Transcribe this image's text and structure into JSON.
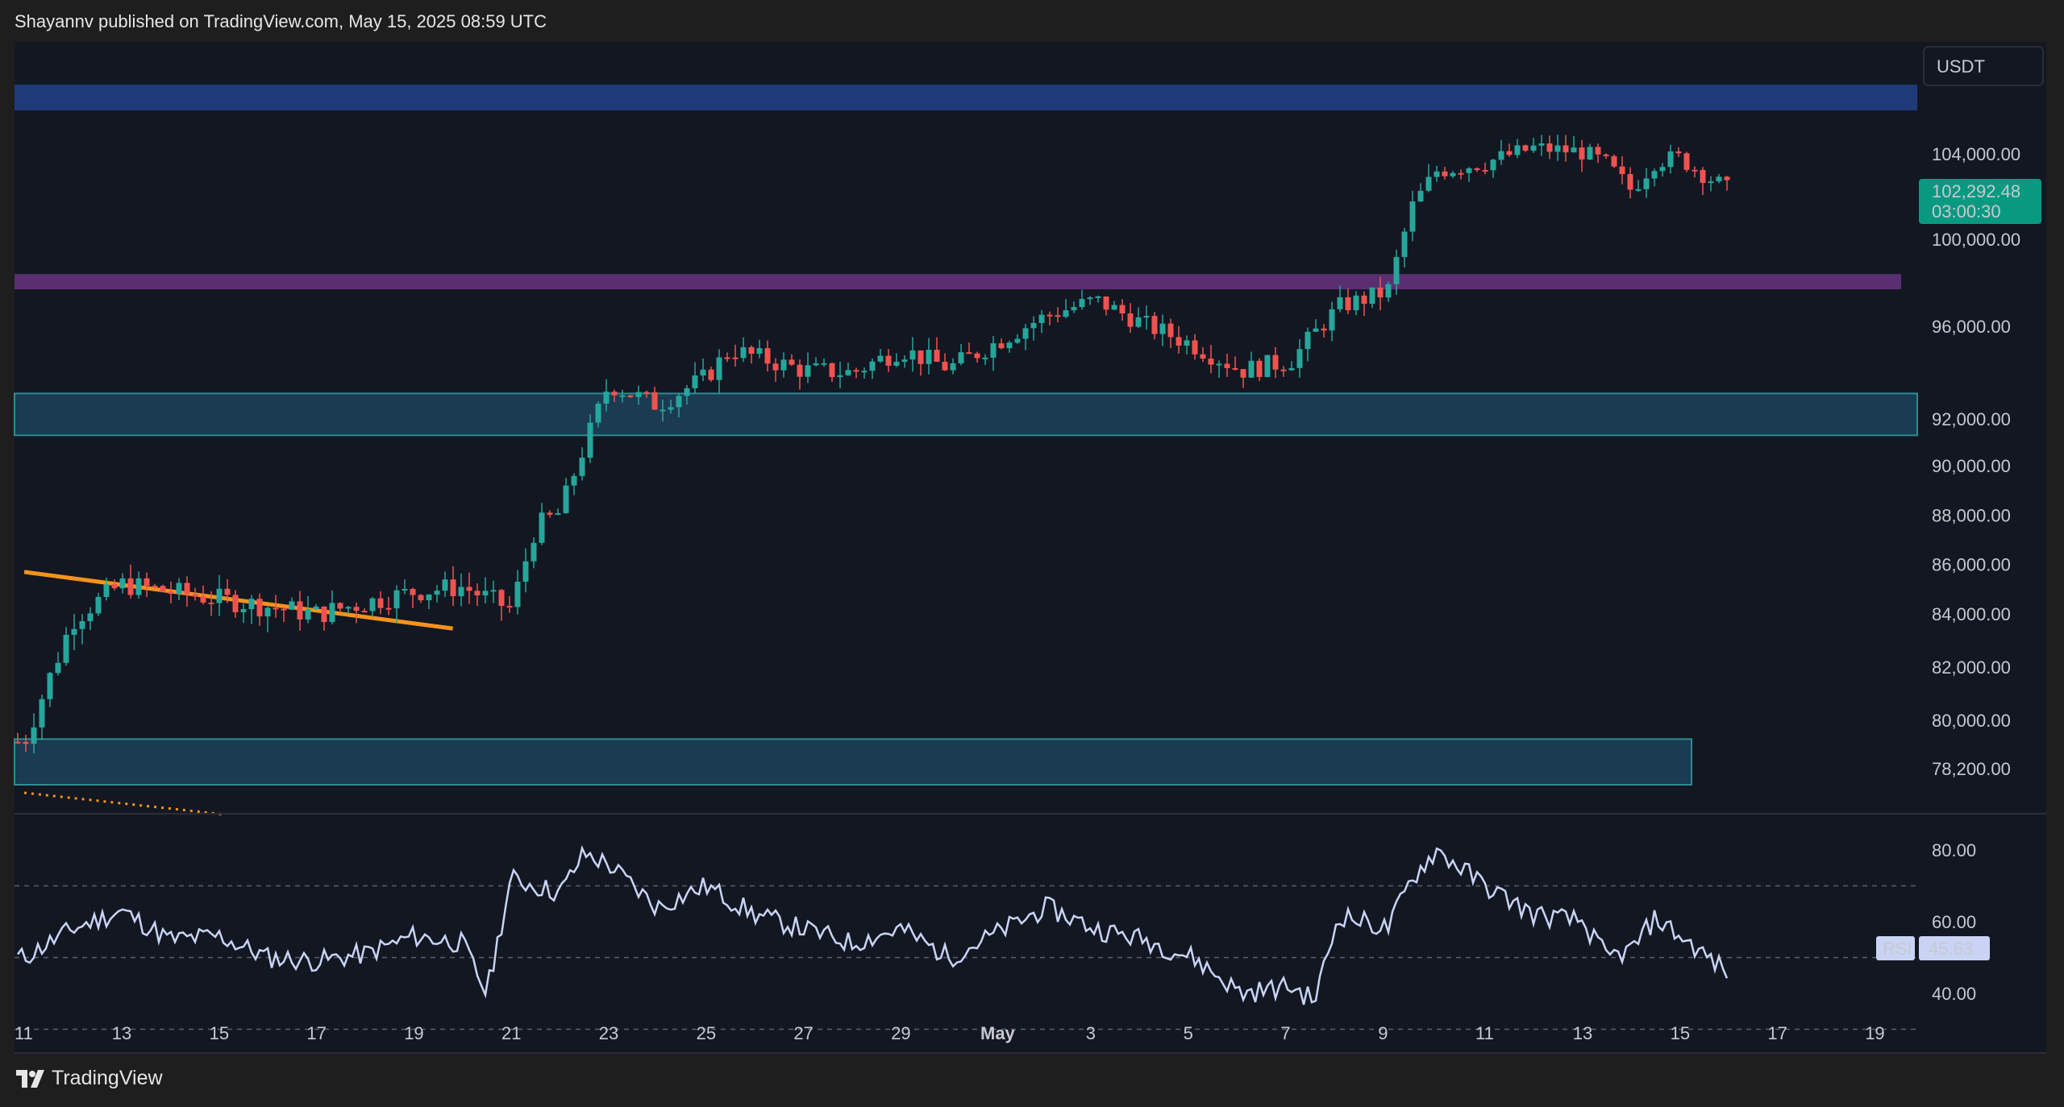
{
  "header": {
    "attribution": "Shayannv published on TradingView.com, May 15, 2025 08:59 UTC"
  },
  "footer": {
    "brand": "TradingView",
    "logo_icon": "tradingview-logo-icon"
  },
  "price_pane": {
    "currency": "USDT",
    "last_price_label": "102,292.48",
    "countdown": "03:00:30",
    "y_ticks": [
      "104,000.00",
      "100,000.00",
      "96,000.00",
      "92,000.00",
      "90,000.00",
      "88,000.00",
      "86,000.00",
      "84,000.00",
      "82,000.00",
      "80,000.00",
      "78,200.00"
    ]
  },
  "rsi_pane": {
    "label": "RSI",
    "value_label": "45.63",
    "y_ticks": [
      "80.00",
      "60.00",
      "40.00"
    ]
  },
  "x_axis": {
    "ticks": [
      "11",
      "13",
      "15",
      "17",
      "19",
      "21",
      "23",
      "25",
      "27",
      "29",
      "May",
      "3",
      "5",
      "7",
      "9",
      "11",
      "13",
      "15",
      "17",
      "19"
    ]
  },
  "colors": {
    "background": "#131722",
    "frame": "#1e1e1e",
    "up": "#26a69a",
    "down": "#ef5350",
    "resistance_zone": "#1e3a78",
    "breakout_zone": "#5a2f72",
    "support_zone": "#1a3b50",
    "trendline": "#f7931a",
    "rsi_line": "#c9d4f5"
  },
  "chart_data": [
    {
      "type": "candlestick",
      "title": "",
      "quote_currency": "USDT",
      "x_start": "Apr 11, 2025",
      "x_end": "May 15, 2025",
      "ylim": [
        77000,
        107000
      ],
      "last_price": 102292.48,
      "key_points": [
        {
          "x": "Apr 11",
          "close": 79200
        },
        {
          "x": "Apr 12",
          "close": 83800
        },
        {
          "x": "Apr 13",
          "close": 85200
        },
        {
          "x": "Apr 15",
          "close": 84600
        },
        {
          "x": "Apr 17",
          "close": 84000
        },
        {
          "x": "Apr 19",
          "close": 84900
        },
        {
          "x": "Apr 20",
          "close": 85100
        },
        {
          "x": "Apr 21",
          "close": 84200
        },
        {
          "x": "Apr 21",
          "close": 87500
        },
        {
          "x": "Apr 22",
          "close": 88100
        },
        {
          "x": "Apr 22",
          "close": 90800
        },
        {
          "x": "Apr 23",
          "close": 93500
        },
        {
          "x": "Apr 24",
          "close": 92600
        },
        {
          "x": "Apr 25",
          "close": 93800
        },
        {
          "x": "Apr 25",
          "close": 95000
        },
        {
          "x": "Apr 27",
          "close": 94100
        },
        {
          "x": "Apr 28",
          "close": 94000
        },
        {
          "x": "Apr 29",
          "close": 95000
        },
        {
          "x": "Apr 30",
          "close": 94200
        },
        {
          "x": "May 1",
          "close": 96500
        },
        {
          "x": "May 2",
          "close": 97200
        },
        {
          "x": "May 3",
          "close": 96100
        },
        {
          "x": "May 4",
          "close": 95200
        },
        {
          "x": "May 5",
          "close": 94100
        },
        {
          "x": "May 6",
          "close": 94500
        },
        {
          "x": "May 7",
          "close": 96900
        },
        {
          "x": "May 8",
          "close": 97600
        },
        {
          "x": "May 8",
          "close": 101500
        },
        {
          "x": "May 9",
          "close": 103200
        },
        {
          "x": "May 10",
          "close": 103600
        },
        {
          "x": "May 11",
          "close": 104300
        },
        {
          "x": "May 12",
          "close": 104100
        },
        {
          "x": "May 12",
          "close": 103500
        },
        {
          "x": "May 13",
          "close": 102300
        },
        {
          "x": "May 13",
          "close": 103700
        },
        {
          "x": "May 14",
          "close": 103800
        },
        {
          "x": "May 15",
          "close": 102292.48
        }
      ],
      "zones": [
        {
          "top": 107500,
          "bottom": 106200,
          "color": "#1e3a78"
        },
        {
          "top": 98400,
          "bottom": 97700,
          "color": "#5a2f72"
        },
        {
          "top": 93100,
          "bottom": 91300,
          "color": "#1a3b50"
        },
        {
          "top": 79300,
          "bottom": 77600,
          "color": "#1a3b50"
        }
      ],
      "trendlines": [
        {
          "from": {
            "x": "Apr 11",
            "y": 85700
          },
          "to": {
            "x": "Apr 20",
            "y": 83450
          },
          "style": "solid",
          "color": "#f7931a"
        },
        {
          "from": {
            "x": "Apr 11",
            "y": 77300
          },
          "to": {
            "x": "Apr 15",
            "y": 76500
          },
          "style": "dotted",
          "color": "#f7931a"
        }
      ]
    },
    {
      "type": "line",
      "title": "RSI",
      "ylim": [
        25,
        90
      ],
      "reference_lines": [
        70,
        50,
        30
      ],
      "last_value": 45.63,
      "key_points": [
        {
          "x": "Apr 11",
          "y": 50
        },
        {
          "x": "Apr 12",
          "y": 58
        },
        {
          "x": "Apr 13",
          "y": 63
        },
        {
          "x": "Apr 14",
          "y": 55
        },
        {
          "x": "Apr 15",
          "y": 56
        },
        {
          "x": "Apr 16",
          "y": 50
        },
        {
          "x": "Apr 17",
          "y": 49
        },
        {
          "x": "Apr 18",
          "y": 51
        },
        {
          "x": "Apr 19",
          "y": 56
        },
        {
          "x": "Apr 20",
          "y": 54
        },
        {
          "x": "Apr 20",
          "y": 40
        },
        {
          "x": "Apr 21",
          "y": 72
        },
        {
          "x": "Apr 22",
          "y": 68
        },
        {
          "x": "Apr 22",
          "y": 79
        },
        {
          "x": "Apr 23",
          "y": 76
        },
        {
          "x": "Apr 24",
          "y": 64
        },
        {
          "x": "Apr 25",
          "y": 70
        },
        {
          "x": "Apr 26",
          "y": 62
        },
        {
          "x": "Apr 27",
          "y": 58
        },
        {
          "x": "Apr 28",
          "y": 54
        },
        {
          "x": "Apr 29",
          "y": 58
        },
        {
          "x": "Apr 30",
          "y": 50
        },
        {
          "x": "May 1",
          "y": 64
        },
        {
          "x": "May 2",
          "y": 58
        },
        {
          "x": "May 3",
          "y": 55
        },
        {
          "x": "May 4",
          "y": 50
        },
        {
          "x": "May 5",
          "y": 40
        },
        {
          "x": "May 6",
          "y": 42
        },
        {
          "x": "May 6",
          "y": 38
        },
        {
          "x": "May 7",
          "y": 62
        },
        {
          "x": "May 8",
          "y": 58
        },
        {
          "x": "May 8",
          "y": 72
        },
        {
          "x": "May 9",
          "y": 80
        },
        {
          "x": "May 10",
          "y": 70
        },
        {
          "x": "May 11",
          "y": 62
        },
        {
          "x": "May 12",
          "y": 60
        },
        {
          "x": "May 12",
          "y": 50
        },
        {
          "x": "May 13",
          "y": 52
        },
        {
          "x": "May 13",
          "y": 61
        },
        {
          "x": "May 14",
          "y": 56
        },
        {
          "x": "May 15",
          "y": 45.63
        }
      ]
    }
  ]
}
